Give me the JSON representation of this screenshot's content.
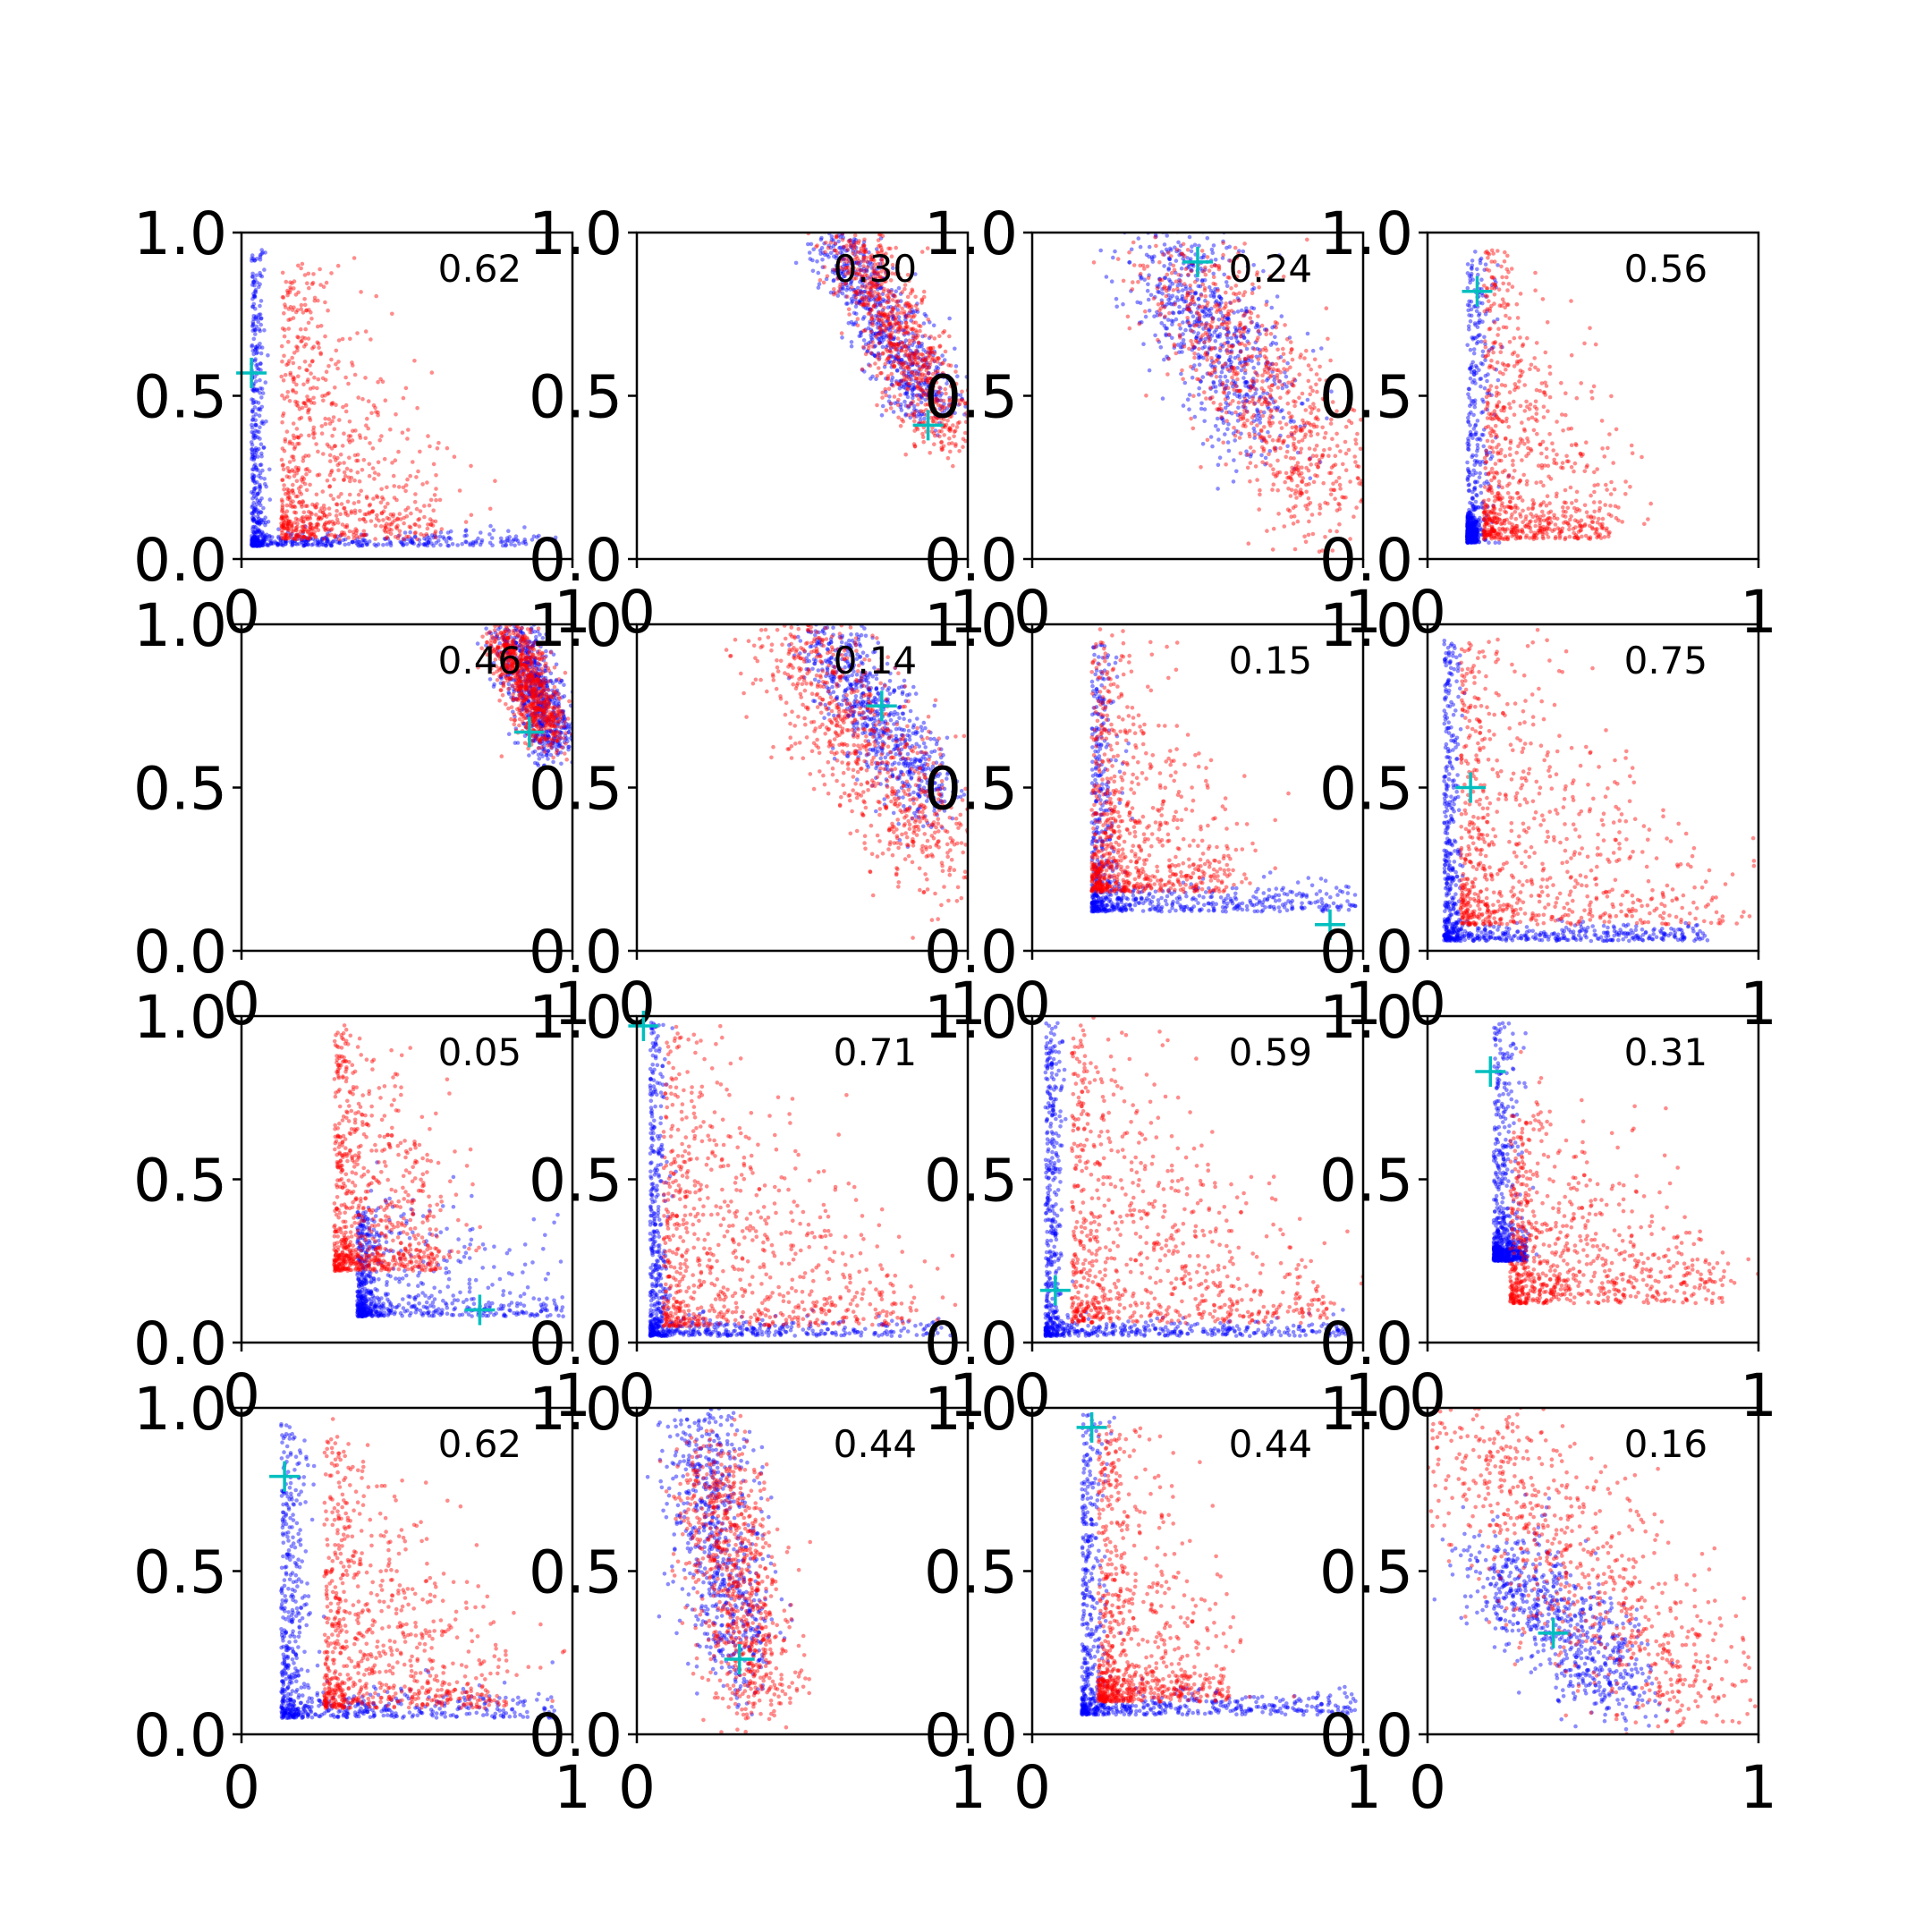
{
  "figure": {
    "rows": 4,
    "cols": 4,
    "colors": {
      "series_a": "#0000ff",
      "series_b": "#ff0000",
      "marker": "#00bfbf",
      "axes": "#000000",
      "background": "#ffffff"
    },
    "xtick_labels": [
      "0",
      "1"
    ],
    "ytick_labels": [
      "0.0",
      "0.5",
      "1.0"
    ]
  },
  "chart_data": [
    {
      "type": "scatter",
      "label": "0.62",
      "xlim": [
        0,
        1
      ],
      "ylim": [
        0,
        1
      ],
      "marker_point": [
        0.03,
        0.57
      ],
      "series": [
        {
          "color": "blue",
          "shape": "L-curve",
          "params": {
            "corner": [
              0.03,
              0.04
            ],
            "hx": 0.95,
            "hy": 0.95,
            "spread": 0.02
          }
        },
        {
          "color": "red",
          "shape": "L-curve",
          "params": {
            "corner": [
              0.12,
              0.06
            ],
            "hx": 0.6,
            "hy": 0.9,
            "spread": 0.06,
            "scatter": 0.35
          }
        }
      ]
    },
    {
      "type": "scatter",
      "label": "0.30",
      "xlim": [
        0,
        1
      ],
      "ylim": [
        0,
        1
      ],
      "marker_point": [
        0.88,
        0.41
      ],
      "series": [
        {
          "color": "blue",
          "shape": "band",
          "params": {
            "from": [
              0.6,
              0.98
            ],
            "to": [
              0.9,
              0.45
            ],
            "spread": 0.05
          }
        },
        {
          "color": "red",
          "shape": "band",
          "params": {
            "from": [
              0.64,
              0.98
            ],
            "to": [
              0.95,
              0.38
            ],
            "spread": 0.06
          }
        }
      ]
    },
    {
      "type": "scatter",
      "label": "0.24",
      "xlim": [
        0,
        1
      ],
      "ylim": [
        0,
        1
      ],
      "marker_point": [
        0.5,
        0.91
      ],
      "series": [
        {
          "color": "blue",
          "shape": "band",
          "params": {
            "from": [
              0.4,
              0.95
            ],
            "to": [
              0.7,
              0.4
            ],
            "spread": 0.09
          }
        },
        {
          "color": "red",
          "shape": "band",
          "params": {
            "from": [
              0.45,
              0.9
            ],
            "to": [
              0.92,
              0.15
            ],
            "spread": 0.1
          }
        }
      ]
    },
    {
      "type": "scatter",
      "label": "0.56",
      "xlim": [
        0,
        1
      ],
      "ylim": [
        0,
        1
      ],
      "marker_point": [
        0.15,
        0.82
      ],
      "series": [
        {
          "color": "blue",
          "shape": "L-curve",
          "params": {
            "corner": [
              0.12,
              0.05
            ],
            "hx": 0.15,
            "hy": 0.95,
            "spread": 0.04
          }
        },
        {
          "color": "red",
          "shape": "L-curve",
          "params": {
            "corner": [
              0.17,
              0.06
            ],
            "hx": 0.55,
            "hy": 0.95,
            "spread": 0.05,
            "scatter": 0.35
          }
        }
      ]
    },
    {
      "type": "scatter",
      "label": "0.46",
      "xlim": [
        0,
        1
      ],
      "ylim": [
        0,
        1
      ],
      "marker_point": [
        0.87,
        0.67
      ],
      "series": [
        {
          "color": "blue",
          "shape": "band",
          "params": {
            "from": [
              0.82,
              0.98
            ],
            "to": [
              0.95,
              0.62
            ],
            "spread": 0.04
          }
        },
        {
          "color": "red",
          "shape": "band",
          "params": {
            "from": [
              0.8,
              0.98
            ],
            "to": [
              0.92,
              0.66
            ],
            "spread": 0.04
          }
        }
      ]
    },
    {
      "type": "scatter",
      "label": "0.14",
      "xlim": [
        0,
        1
      ],
      "ylim": [
        0,
        1
      ],
      "marker_point": [
        0.74,
        0.75
      ],
      "series": [
        {
          "color": "blue",
          "shape": "band",
          "params": {
            "from": [
              0.55,
              0.98
            ],
            "to": [
              0.9,
              0.45
            ],
            "spread": 0.06
          }
        },
        {
          "color": "red",
          "shape": "band",
          "params": {
            "from": [
              0.45,
              0.98
            ],
            "to": [
              0.95,
              0.25
            ],
            "spread": 0.09
          }
        }
      ]
    },
    {
      "type": "scatter",
      "label": "0.15",
      "xlim": [
        0,
        1
      ],
      "ylim": [
        0,
        1
      ],
      "marker_point": [
        0.9,
        0.08
      ],
      "series": [
        {
          "color": "blue",
          "shape": "L-curve",
          "params": {
            "corner": [
              0.18,
              0.12
            ],
            "hx": 0.98,
            "hy": 0.95,
            "spread": 0.04
          }
        },
        {
          "color": "red",
          "shape": "L-curve",
          "params": {
            "corner": [
              0.18,
              0.18
            ],
            "hx": 0.6,
            "hy": 0.95,
            "spread": 0.06,
            "scatter": 0.3
          }
        }
      ]
    },
    {
      "type": "scatter",
      "label": "0.75",
      "xlim": [
        0,
        1
      ],
      "ylim": [
        0,
        1
      ],
      "marker_point": [
        0.13,
        0.5
      ],
      "series": [
        {
          "color": "blue",
          "shape": "L-curve",
          "params": {
            "corner": [
              0.05,
              0.03
            ],
            "hx": 0.85,
            "hy": 0.95,
            "spread": 0.025
          }
        },
        {
          "color": "red",
          "shape": "L-curve",
          "params": {
            "corner": [
              0.1,
              0.08
            ],
            "hx": 0.9,
            "hy": 0.95,
            "spread": 0.05,
            "scatter": 0.45
          }
        }
      ]
    },
    {
      "type": "scatter",
      "label": "0.05",
      "xlim": [
        0,
        1
      ],
      "ylim": [
        0,
        1
      ],
      "marker_point": [
        0.72,
        0.1
      ],
      "series": [
        {
          "color": "blue",
          "shape": "L-curve",
          "params": {
            "corner": [
              0.35,
              0.08
            ],
            "hx": 0.98,
            "hy": 0.4,
            "spread": 0.03,
            "scatter": 0.2
          }
        },
        {
          "color": "red",
          "shape": "L-curve",
          "params": {
            "corner": [
              0.28,
              0.22
            ],
            "hx": 0.6,
            "hy": 0.95,
            "spread": 0.04,
            "scatter": 0.35
          }
        }
      ]
    },
    {
      "type": "scatter",
      "label": "0.71",
      "xlim": [
        0,
        1
      ],
      "ylim": [
        0,
        1
      ],
      "marker_point": [
        0.02,
        0.97
      ],
      "series": [
        {
          "color": "blue",
          "shape": "L-curve",
          "params": {
            "corner": [
              0.04,
              0.02
            ],
            "hx": 0.95,
            "hy": 0.98,
            "spread": 0.025
          }
        },
        {
          "color": "red",
          "shape": "L-curve",
          "params": {
            "corner": [
              0.08,
              0.05
            ],
            "hx": 0.85,
            "hy": 0.95,
            "spread": 0.05,
            "scatter": 0.5
          }
        }
      ]
    },
    {
      "type": "scatter",
      "label": "0.59",
      "xlim": [
        0,
        1
      ],
      "ylim": [
        0,
        1
      ],
      "marker_point": [
        0.07,
        0.16
      ],
      "series": [
        {
          "color": "blue",
          "shape": "L-curve",
          "params": {
            "corner": [
              0.04,
              0.02
            ],
            "hx": 0.95,
            "hy": 0.98,
            "spread": 0.025
          }
        },
        {
          "color": "red",
          "shape": "L-curve",
          "params": {
            "corner": [
              0.12,
              0.06
            ],
            "hx": 0.9,
            "hy": 0.95,
            "spread": 0.05,
            "scatter": 0.5
          }
        }
      ]
    },
    {
      "type": "scatter",
      "label": "0.31",
      "xlim": [
        0,
        1
      ],
      "ylim": [
        0,
        1
      ],
      "marker_point": [
        0.19,
        0.83
      ],
      "series": [
        {
          "color": "blue",
          "shape": "L-curve",
          "params": {
            "corner": [
              0.2,
              0.25
            ],
            "hx": 0.3,
            "hy": 0.98,
            "spread": 0.04
          }
        },
        {
          "color": "red",
          "shape": "L-curve",
          "params": {
            "corner": [
              0.25,
              0.12
            ],
            "hx": 0.9,
            "hy": 0.7,
            "spread": 0.06,
            "scatter": 0.35
          }
        }
      ]
    },
    {
      "type": "scatter",
      "label": "0.62",
      "xlim": [
        0,
        1
      ],
      "ylim": [
        0,
        1
      ],
      "marker_point": [
        0.13,
        0.79
      ],
      "series": [
        {
          "color": "blue",
          "shape": "L-curve",
          "params": {
            "corner": [
              0.12,
              0.05
            ],
            "hx": 0.95,
            "hy": 0.95,
            "spread": 0.04
          }
        },
        {
          "color": "red",
          "shape": "L-curve",
          "params": {
            "corner": [
              0.25,
              0.08
            ],
            "hx": 0.8,
            "hy": 0.9,
            "spread": 0.05,
            "scatter": 0.45
          }
        }
      ]
    },
    {
      "type": "scatter",
      "label": "0.44",
      "xlim": [
        0,
        1
      ],
      "ylim": [
        0,
        1
      ],
      "marker_point": [
        0.31,
        0.23
      ],
      "series": [
        {
          "color": "blue",
          "shape": "band",
          "params": {
            "from": [
              0.18,
              0.98
            ],
            "to": [
              0.32,
              0.18
            ],
            "spread": 0.07
          }
        },
        {
          "color": "red",
          "shape": "band",
          "params": {
            "from": [
              0.22,
              0.85
            ],
            "to": [
              0.38,
              0.1
            ],
            "spread": 0.07
          }
        }
      ]
    },
    {
      "type": "scatter",
      "label": "0.44",
      "xlim": [
        0,
        1
      ],
      "ylim": [
        0,
        1
      ],
      "marker_point": [
        0.18,
        0.94
      ],
      "series": [
        {
          "color": "blue",
          "shape": "L-curve",
          "params": {
            "corner": [
              0.15,
              0.06
            ],
            "hx": 0.98,
            "hy": 0.98,
            "spread": 0.035
          }
        },
        {
          "color": "red",
          "shape": "L-curve",
          "params": {
            "corner": [
              0.2,
              0.1
            ],
            "hx": 0.6,
            "hy": 0.95,
            "spread": 0.05,
            "scatter": 0.3
          }
        }
      ]
    },
    {
      "type": "scatter",
      "label": "0.16",
      "xlim": [
        0,
        1
      ],
      "ylim": [
        0,
        1
      ],
      "marker_point": [
        0.38,
        0.31
      ],
      "series": [
        {
          "color": "blue",
          "shape": "band",
          "params": {
            "from": [
              0.2,
              0.55
            ],
            "to": [
              0.6,
              0.12
            ],
            "spread": 0.08
          }
        },
        {
          "color": "red",
          "shape": "band",
          "params": {
            "from": [
              0.08,
              0.95
            ],
            "to": [
              0.85,
              0.05
            ],
            "spread": 0.13
          }
        }
      ]
    }
  ]
}
